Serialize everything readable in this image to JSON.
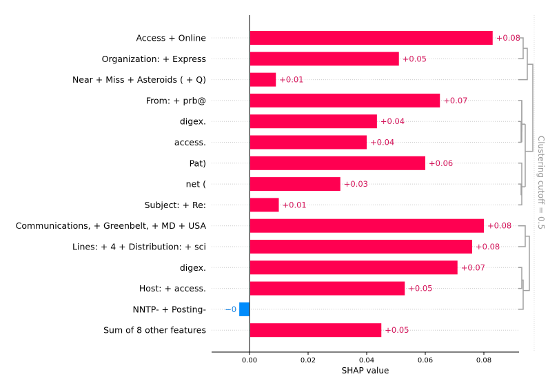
{
  "chart_data": {
    "type": "bar",
    "orientation": "horizontal",
    "title": "",
    "xlabel": "SHAP value",
    "ylabel": "",
    "xlim": [
      -0.013,
      0.092
    ],
    "xticks": [
      0.0,
      0.02,
      0.04,
      0.06,
      0.08
    ],
    "xtick_labels": [
      "0.00",
      "0.02",
      "0.04",
      "0.06",
      "0.08"
    ],
    "grid": false,
    "categories": [
      "Access + Online",
      "Organization: + Express",
      "Near + Miss + Asteroids ( + Q)",
      "From: + prb@",
      "digex.",
      "access.",
      "Pat)",
      "net (",
      "Subject: + Re:",
      "Communications, + Greenbelt, + MD + USA",
      "Lines: + 4 + Distribution: + sci",
      "digex.",
      "Host: + access.",
      "NNTP- + Posting-",
      "Sum of 8 other features"
    ],
    "values": [
      0.083,
      0.051,
      0.009,
      0.065,
      0.0435,
      0.04,
      0.06,
      0.031,
      0.01,
      0.08,
      0.076,
      0.071,
      0.053,
      -0.0035,
      0.045
    ],
    "value_labels": [
      "+0.08",
      "+0.05",
      "+0.01",
      "+0.07",
      "+0.04",
      "+0.04",
      "+0.06",
      "+0.03",
      "+0.01",
      "+0.08",
      "+0.08",
      "+0.07",
      "+0.05",
      "−0",
      "+0.05"
    ],
    "colors": {
      "positive": "#ff0051",
      "negative": "#008bfb",
      "positive_text": "#d4145a",
      "negative_text": "#1e88e5"
    },
    "annotations": [
      "Clustering cutoff = 0.5"
    ],
    "clustering_cutoff_label": "Clustering cutoff = 0.5",
    "dendrogram": "hierarchical clustering brackets on right side grouping rows [0,1,2], [3,4,5], [6,7,8], [9,10], [11,12,13]"
  }
}
